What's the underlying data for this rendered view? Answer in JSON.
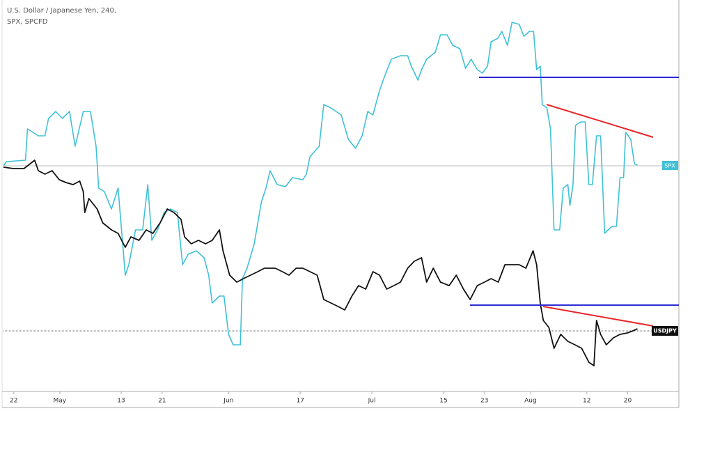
{
  "chart_data": {
    "type": "line",
    "title": "U.S. Dollar / Japanese Yen, 240,",
    "subtitle": "SPX, SPCFD",
    "xlim": [
      -2,
      130
    ],
    "ylim": [
      0,
      560
    ],
    "xticks": [
      {
        "value": 0,
        "label": "22"
      },
      {
        "value": 9,
        "label": "May"
      },
      {
        "value": 21,
        "label": "13"
      },
      {
        "value": 29,
        "label": "21"
      },
      {
        "value": 42,
        "label": "Jun"
      },
      {
        "value": 56,
        "label": "17"
      },
      {
        "value": 70,
        "label": "Jul"
      },
      {
        "value": 84,
        "label": "15"
      },
      {
        "value": 92,
        "label": "23"
      },
      {
        "value": 101,
        "label": "Aug"
      },
      {
        "value": 112,
        "label": "12"
      },
      {
        "value": 120,
        "label": "20"
      }
    ],
    "series": [
      {
        "name": "SPX",
        "color": "#3fc1d6",
        "x": [
          -2.0,
          -1.4,
          2.3,
          2.7,
          4.8,
          6.1,
          6.8,
          8.2,
          9.5,
          10.9,
          12.0,
          13.6,
          15.0,
          16.1,
          16.6,
          17.7,
          19.1,
          20.4,
          21.8,
          22.5,
          23.8,
          25.2,
          26.2,
          27.0,
          28.1,
          29.4,
          30.7,
          32.0,
          33.0,
          34.1,
          35.7,
          37.2,
          38.1,
          38.8,
          40.2,
          41.1,
          42.0,
          42.9,
          44.3,
          44.7,
          45.6,
          47.0,
          48.4,
          49.3,
          50.1,
          51.5,
          53.1,
          54.5,
          56.5,
          57.2,
          57.9,
          59.7,
          60.6,
          62.0,
          64.0,
          65.4,
          66.8,
          68.1,
          69.2,
          70.2,
          71.5,
          72.2,
          73.8,
          75.6,
          77.0,
          77.7,
          79.0,
          79.7,
          80.7,
          82.4,
          83.4,
          84.7,
          85.8,
          87.2,
          88.3,
          89.4,
          90.6,
          91.6,
          92.6,
          93.3,
          94.6,
          95.4,
          96.5,
          97.4,
          98.8,
          99.7,
          100.8,
          101.6,
          102.2,
          102.9,
          103.3,
          104.2,
          104.9,
          105.6,
          106.7,
          107.4,
          108.3,
          108.7,
          109.3,
          109.8,
          110.8,
          111.7,
          112.4,
          113.1,
          113.9,
          114.7,
          115.5,
          116.9,
          117.8,
          118.5,
          119.2,
          119.6,
          120.6,
          121.3,
          121.9
        ],
        "values": [
          322,
          328,
          330,
          375,
          365,
          365,
          390,
          400,
          390,
          400,
          350,
          400,
          400,
          350,
          290,
          285,
          260,
          290,
          165,
          180,
          230,
          230,
          295,
          215,
          230,
          255,
          260,
          255,
          180,
          195,
          200,
          190,
          165,
          125,
          135,
          135,
          80,
          65,
          65,
          160,
          175,
          210,
          270,
          290,
          315,
          295,
          292,
          305,
          302,
          310,
          335,
          350,
          410,
          405,
          395,
          360,
          347,
          365,
          400,
          395,
          430,
          445,
          475,
          480,
          480,
          465,
          445,
          460,
          475,
          485,
          510,
          510,
          495,
          490,
          462,
          475,
          460,
          455,
          465,
          500,
          505,
          515,
          495,
          528,
          525,
          508,
          515,
          515,
          460,
          465,
          410,
          405,
          375,
          230,
          230,
          290,
          295,
          265,
          295,
          380,
          385,
          385,
          295,
          295,
          365,
          365,
          225,
          235,
          235,
          305,
          305,
          370,
          360,
          325,
          323
        ]
      },
      {
        "name": "USDJPY",
        "color": "#111111",
        "x": [
          -2.0,
          0,
          2.0,
          4.1,
          4.8,
          6.1,
          7.5,
          8.9,
          10.2,
          11.6,
          12.9,
          13.6,
          13.9,
          14.7,
          16.3,
          17.4,
          19.1,
          20.4,
          21.8,
          22.9,
          24.5,
          25.9,
          27.2,
          28.6,
          30.0,
          31.3,
          32.7,
          33.4,
          34.7,
          36.1,
          37.5,
          38.8,
          40.2,
          40.9,
          42.2,
          43.6,
          44.9,
          46.3,
          47.7,
          49.0,
          51.1,
          52.5,
          53.8,
          55.2,
          56.5,
          57.9,
          59.3,
          60.6,
          62.0,
          63.4,
          64.7,
          66.1,
          67.4,
          68.8,
          70.2,
          71.5,
          72.9,
          74.3,
          75.6,
          77.0,
          78.3,
          79.7,
          80.7,
          82.0,
          83.4,
          85.1,
          86.5,
          87.9,
          89.2,
          90.6,
          92.0,
          93.3,
          94.7,
          96.0,
          97.4,
          98.8,
          100.1,
          101.5,
          102.2,
          102.9,
          103.5,
          104.6,
          105.6,
          106.9,
          108.3,
          109.7,
          111.0,
          112.4,
          113.4,
          113.9,
          114.7,
          115.8,
          117.2,
          118.5,
          119.9,
          121.0,
          121.9
        ],
        "values": [
          320,
          318,
          318,
          330,
          315,
          310,
          315,
          302,
          298,
          295,
          300,
          285,
          255,
          275,
          260,
          240,
          230,
          225,
          205,
          220,
          215,
          230,
          225,
          240,
          260,
          255,
          245,
          220,
          210,
          215,
          210,
          215,
          230,
          200,
          165,
          155,
          160,
          165,
          170,
          175,
          175,
          170,
          165,
          175,
          175,
          170,
          165,
          130,
          125,
          120,
          115,
          135,
          150,
          145,
          170,
          165,
          145,
          150,
          155,
          175,
          185,
          190,
          155,
          175,
          155,
          150,
          165,
          145,
          130,
          150,
          155,
          160,
          155,
          180,
          180,
          180,
          175,
          200,
          180,
          125,
          100,
          90,
          60,
          80,
          70,
          65,
          60,
          40,
          35,
          100,
          80,
          65,
          75,
          80,
          82,
          85,
          88
        ]
      }
    ]
  }
}
